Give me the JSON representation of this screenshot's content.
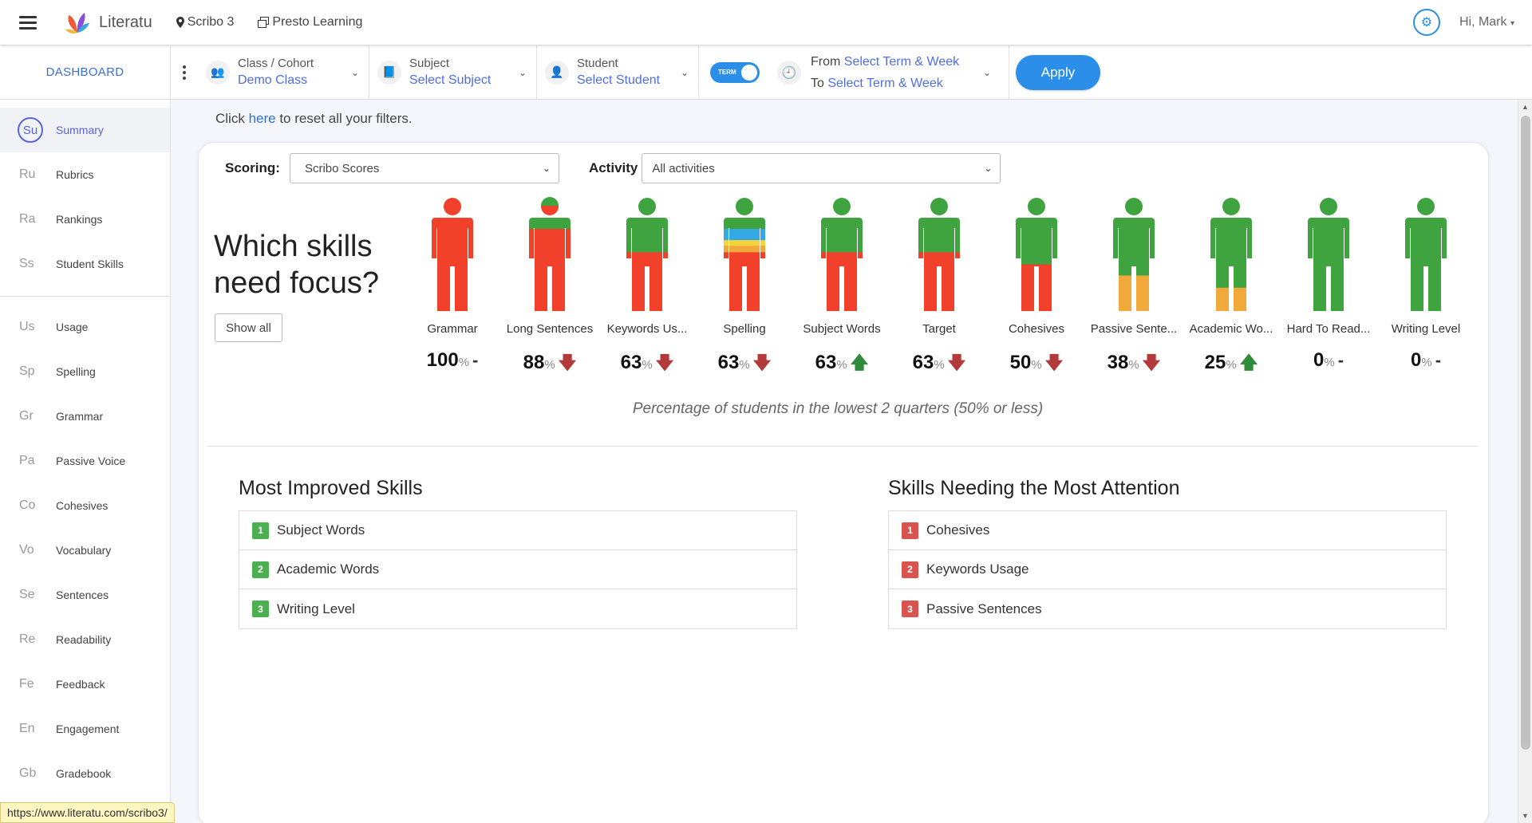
{
  "topbar": {
    "app_name": "Literatu",
    "product": "Scribo 3",
    "org": "Presto Learning",
    "greeting": "Hi, Mark",
    "icons": [
      "hamburger-icon",
      "map-pin-icon",
      "copy-icon",
      "gear-icon",
      "caret-down-icon"
    ]
  },
  "filters": {
    "dashboard_label": "DASHBOARD",
    "class": {
      "label": "Class / Cohort",
      "value": "Demo Class"
    },
    "subject": {
      "label": "Subject",
      "value": "Select Subject"
    },
    "student": {
      "label": "Student",
      "value": "Select Student"
    },
    "toggle_label": "TERM",
    "from_label": "From",
    "from_value": "Select Term & Week",
    "to_label": "To",
    "to_value": "Select Term & Week",
    "apply_label": "Apply"
  },
  "sidebar": {
    "items": [
      {
        "abbr": "Su",
        "label": "Summary",
        "active": true
      },
      {
        "abbr": "Ru",
        "label": "Rubrics"
      },
      {
        "abbr": "Ra",
        "label": "Rankings"
      },
      {
        "abbr": "Ss",
        "label": "Student Skills"
      },
      {
        "abbr": "Us",
        "label": "Usage"
      },
      {
        "abbr": "Sp",
        "label": "Spelling"
      },
      {
        "abbr": "Gr",
        "label": "Grammar"
      },
      {
        "abbr": "Pa",
        "label": "Passive Voice"
      },
      {
        "abbr": "Co",
        "label": "Cohesives"
      },
      {
        "abbr": "Vo",
        "label": "Vocabulary"
      },
      {
        "abbr": "Se",
        "label": "Sentences"
      },
      {
        "abbr": "Re",
        "label": "Readability"
      },
      {
        "abbr": "Fe",
        "label": "Feedback"
      },
      {
        "abbr": "En",
        "label": "Engagement"
      },
      {
        "abbr": "Gb",
        "label": "Gradebook"
      }
    ]
  },
  "status_url": "https://www.literatu.com/scribo3/",
  "main": {
    "reset_prefix": "Click ",
    "reset_link": "here",
    "reset_suffix": " to reset all your filters.",
    "scoring_label": "Scoring:",
    "scoring_value": "Scribo Scores",
    "activity_label": "Activity",
    "activity_value": "All activities",
    "focus_title_line1": "Which skills",
    "focus_title_line2": "need focus?",
    "show_all_label": "Show all",
    "unit": "%",
    "caption": "Percentage of students in the lowest 2 quarters (50% or less)",
    "colors": {
      "red": "#f2412b",
      "green": "#3fa33f",
      "orange": "#f2a93b",
      "yellow": "#f5d43b",
      "blue": "#35a8e6"
    },
    "skills": [
      {
        "name": "Grammar",
        "pct": "100",
        "trend": "flat",
        "bands": [
          [
            "red",
            1.0
          ]
        ]
      },
      {
        "name": "Long Sentences",
        "pct": "88",
        "trend": "down",
        "bands": [
          [
            "green",
            0.12
          ],
          [
            "red",
            0.88
          ]
        ]
      },
      {
        "name": "Keywords Us...",
        "pct": "63",
        "trend": "down",
        "bands": [
          [
            "green",
            0.37
          ],
          [
            "red",
            0.63
          ]
        ]
      },
      {
        "name": "Spelling",
        "pct": "63",
        "trend": "down",
        "bands": [
          [
            "green",
            0.12
          ],
          [
            "blue",
            0.12
          ],
          [
            "yellow",
            0.06
          ],
          [
            "orange",
            0.07
          ],
          [
            "red",
            0.63
          ]
        ]
      },
      {
        "name": "Subject Words",
        "pct": "63",
        "trend": "up",
        "bands": [
          [
            "green",
            0.37
          ],
          [
            "red",
            0.63
          ]
        ]
      },
      {
        "name": "Target",
        "pct": "63",
        "trend": "down",
        "bands": [
          [
            "green",
            0.37
          ],
          [
            "red",
            0.63
          ]
        ]
      },
      {
        "name": "Cohesives",
        "pct": "50",
        "trend": "down",
        "bands": [
          [
            "green",
            0.5
          ],
          [
            "red",
            0.5
          ]
        ]
      },
      {
        "name": "Passive Sente...",
        "pct": "38",
        "trend": "down",
        "bands": [
          [
            "green",
            0.62
          ],
          [
            "orange",
            0.38
          ]
        ]
      },
      {
        "name": "Academic Wo...",
        "pct": "25",
        "trend": "up",
        "bands": [
          [
            "green",
            0.75
          ],
          [
            "orange",
            0.25
          ]
        ]
      },
      {
        "name": "Hard To Read...",
        "pct": "0",
        "trend": "flat",
        "bands": [
          [
            "green",
            1.0
          ]
        ]
      },
      {
        "name": "Writing Level",
        "pct": "0",
        "trend": "flat",
        "bands": [
          [
            "green",
            1.0
          ]
        ]
      }
    ],
    "most_improved": {
      "title": "Most Improved Skills",
      "items": [
        {
          "rank": "1",
          "label": "Subject Words"
        },
        {
          "rank": "2",
          "label": "Academic Words"
        },
        {
          "rank": "3",
          "label": "Writing Level"
        }
      ]
    },
    "most_attention": {
      "title": "Skills Needing the Most Attention",
      "items": [
        {
          "rank": "1",
          "label": "Cohesives"
        },
        {
          "rank": "2",
          "label": "Keywords Usage"
        },
        {
          "rank": "3",
          "label": "Passive Sentences"
        }
      ]
    }
  }
}
